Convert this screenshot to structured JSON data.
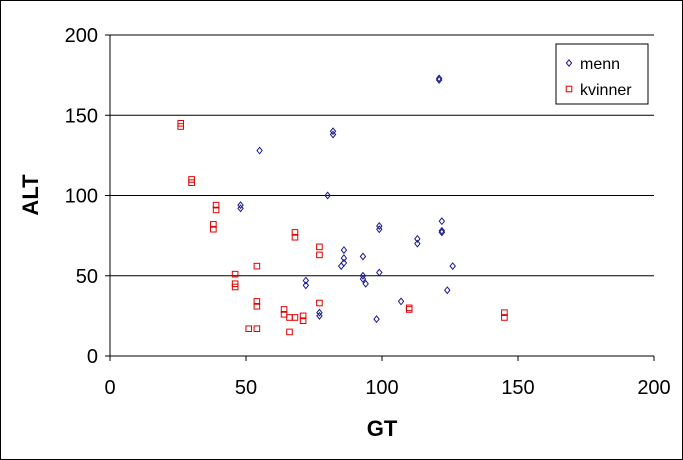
{
  "chart_data": {
    "type": "scatter",
    "title": "",
    "xlabel": "GT",
    "ylabel": "ALT",
    "xlim": [
      0,
      200
    ],
    "ylim": [
      0,
      200
    ],
    "x_ticks": [
      "0",
      "50",
      "100",
      "150",
      "200"
    ],
    "y_ticks": [
      "0",
      "50",
      "100",
      "150",
      "200"
    ],
    "grid": "horizontal major gridlines",
    "legend_position": "top-right",
    "series": [
      {
        "name": "menn",
        "marker": "diamond",
        "color": "#1a1a8c",
        "points": [
          [
            48,
            92
          ],
          [
            48,
            94
          ],
          [
            55,
            128
          ],
          [
            72,
            47
          ],
          [
            72,
            44
          ],
          [
            77,
            27
          ],
          [
            77,
            25
          ],
          [
            80,
            100
          ],
          [
            82,
            140
          ],
          [
            82,
            138
          ],
          [
            85,
            56
          ],
          [
            86,
            58
          ],
          [
            86,
            61
          ],
          [
            86,
            66
          ],
          [
            93,
            62
          ],
          [
            93,
            50
          ],
          [
            93,
            48
          ],
          [
            94,
            45
          ],
          [
            98,
            23
          ],
          [
            99,
            81
          ],
          [
            99,
            79
          ],
          [
            99,
            52
          ],
          [
            107,
            34
          ],
          [
            113,
            73
          ],
          [
            113,
            70
          ],
          [
            121,
            173
          ],
          [
            121,
            172
          ],
          [
            122,
            84
          ],
          [
            122,
            78
          ],
          [
            122,
            77
          ],
          [
            124,
            41
          ],
          [
            126,
            56
          ]
        ]
      },
      {
        "name": "kvinner",
        "marker": "square",
        "color": "#e00000",
        "points": [
          [
            26,
            145
          ],
          [
            26,
            143
          ],
          [
            30,
            110
          ],
          [
            30,
            108
          ],
          [
            39,
            94
          ],
          [
            39,
            91
          ],
          [
            38,
            82
          ],
          [
            38,
            79
          ],
          [
            46,
            51
          ],
          [
            46,
            45
          ],
          [
            46,
            43
          ],
          [
            51,
            17
          ],
          [
            54,
            56
          ],
          [
            54,
            34
          ],
          [
            54,
            31
          ],
          [
            54,
            17
          ],
          [
            64,
            29
          ],
          [
            64,
            26
          ],
          [
            66,
            15
          ],
          [
            66,
            24
          ],
          [
            68,
            77
          ],
          [
            68,
            74
          ],
          [
            68,
            24
          ],
          [
            71,
            25
          ],
          [
            71,
            22
          ],
          [
            77,
            68
          ],
          [
            77,
            63
          ],
          [
            77,
            33
          ],
          [
            110,
            30
          ],
          [
            110,
            29
          ],
          [
            145,
            27
          ],
          [
            145,
            24
          ]
        ]
      }
    ]
  }
}
